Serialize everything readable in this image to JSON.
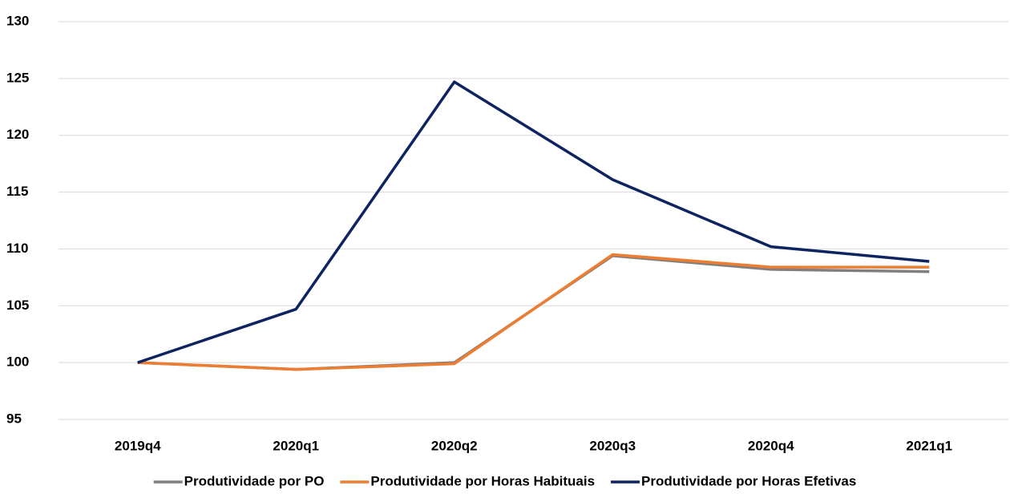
{
  "chart_data": {
    "type": "line",
    "categories": [
      "2019q4",
      "2020q1",
      "2020q2",
      "2020q3",
      "2020q4",
      "2021q1"
    ],
    "series": [
      {
        "name": "Produtividade por PO",
        "color": "#7f7f7f",
        "values": [
          100,
          99.4,
          100.0,
          109.4,
          108.2,
          108.0
        ]
      },
      {
        "name": "Produtividade por Horas Habituais",
        "color": "#ed7d31",
        "values": [
          100,
          99.4,
          99.9,
          109.5,
          108.4,
          108.4
        ]
      },
      {
        "name": "Produtividade por Horas Efetivas",
        "color": "#0e2461",
        "values": [
          100,
          104.7,
          124.7,
          116.1,
          110.2,
          108.9
        ]
      }
    ],
    "ylim": [
      95,
      130
    ],
    "yticks": [
      95,
      100,
      105,
      110,
      115,
      120,
      125,
      130
    ],
    "grid": true,
    "legend": "bottom"
  }
}
